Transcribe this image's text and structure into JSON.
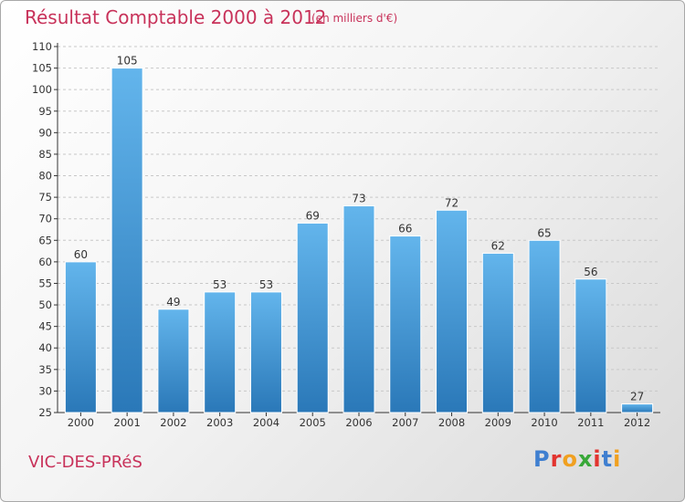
{
  "header": {
    "title": "Résultat Comptable 2000 à 2012",
    "subtitle": "(en milliers d'€)"
  },
  "footer": {
    "commune": "VIC-DES-PRéS",
    "brand_letters": [
      "P",
      "r",
      "o",
      "x",
      "i",
      "t",
      "i"
    ],
    "brand_colors": [
      "#3f7fd0",
      "#e2342f",
      "#f0a020",
      "#38a838",
      "#e2342f",
      "#3f7fd0",
      "#f0a020"
    ]
  },
  "colors": {
    "bar_light": "#63b5ec",
    "bar_dark": "#2a78b8",
    "axis": "#333333",
    "grid": "#c8c8c8",
    "text": "#333333"
  },
  "chart_data": {
    "type": "bar",
    "categories": [
      "2000",
      "2001",
      "2002",
      "2003",
      "2004",
      "2005",
      "2006",
      "2007",
      "2008",
      "2009",
      "2010",
      "2011",
      "2012"
    ],
    "values": [
      60,
      105,
      49,
      53,
      53,
      69,
      73,
      66,
      72,
      62,
      65,
      56,
      27
    ],
    "ylim": [
      25,
      110
    ],
    "yticks": [
      25,
      30,
      35,
      40,
      45,
      50,
      55,
      60,
      65,
      70,
      75,
      80,
      85,
      90,
      95,
      100,
      105,
      110
    ],
    "grid": "horizontal dashed",
    "data_labels": true
  }
}
